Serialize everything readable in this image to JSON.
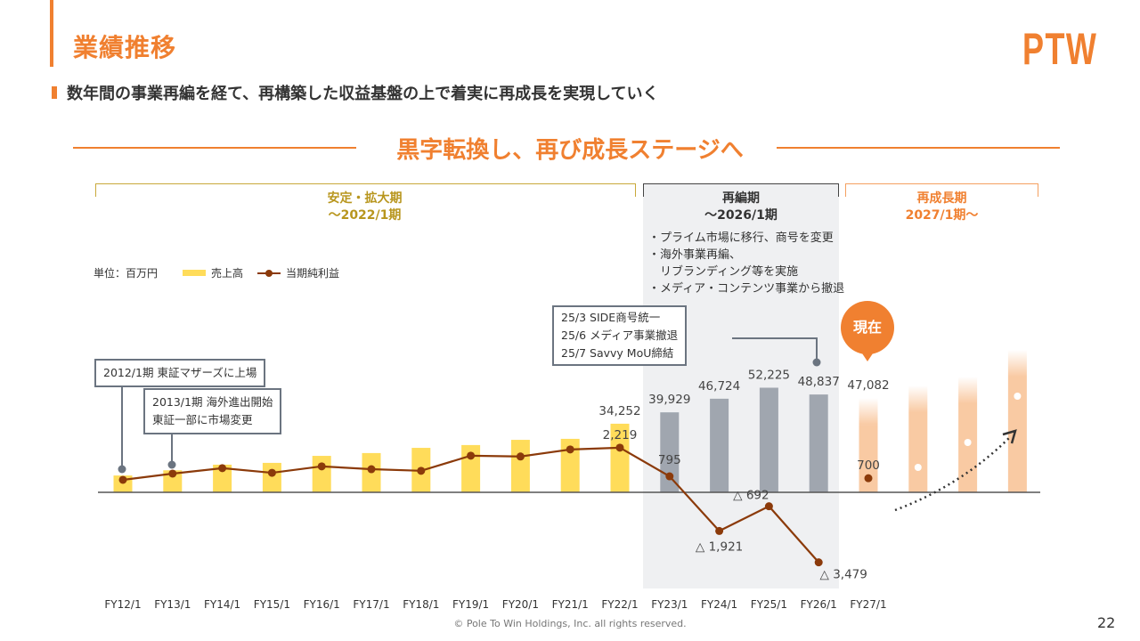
{
  "header": {
    "title": "業績推移",
    "logo": "PTW",
    "subtitle": "数年間の事業再編を経て、再構築した収益基盤の上で着実に再成長を実現していく",
    "headline": "黒字転換し、再び成長ステージへ"
  },
  "phases": [
    {
      "name": "安定・拡大期",
      "period": "～2022/1期",
      "color": "#b8961e"
    },
    {
      "name": "再編期",
      "period": "～2026/1期",
      "color": "#444444",
      "bullets": [
        "・プライム市場に移行、商号を変更",
        "・海外事業再編、",
        "　リブランディング等を実施",
        "・メディア・コンテンツ事業から撤退"
      ]
    },
    {
      "name": "再成長期",
      "period": "2027/1期～",
      "color": "#f08030"
    }
  ],
  "legend": {
    "unit": "単位：百万円",
    "sales": "売上高",
    "profit": "当期純利益"
  },
  "annotations": {
    "listing_2012": "2012/1期 東証マザーズに上場",
    "overseas_2013_line1": "2013/1期 海外進出開始",
    "overseas_2013_line2": "東証一部に市場変更",
    "events_2025": [
      "25/3 SIDE商号統一",
      "25/6 メディア事業撤退",
      "25/7 Savvy MoU締結"
    ]
  },
  "now_badge": "現在",
  "colors": {
    "accent": "#f08030",
    "sales_bar": "#ffdc5a",
    "restructure_bar": "#a0a6af",
    "forecast_bar": "#f9caa3",
    "profit_line": "#8b3a0a"
  },
  "chart_data": {
    "type": "bar",
    "title": "業績推移",
    "unit": "百万円",
    "categories": [
      "FY12/1",
      "FY13/1",
      "FY14/1",
      "FY15/1",
      "FY16/1",
      "FY17/1",
      "FY18/1",
      "FY19/1",
      "FY20/1",
      "FY21/1",
      "FY22/1",
      "FY23/1",
      "FY24/1",
      "FY25/1",
      "FY26/1",
      "FY27/1"
    ],
    "series": [
      {
        "name": "売上高",
        "kind": "bar",
        "values": [
          8400,
          11000,
          13800,
          14700,
          18200,
          19600,
          22200,
          23600,
          26200,
          26700,
          34252,
          39929,
          46724,
          52225,
          48837,
          47082
        ],
        "labels": {
          "10": "34,252",
          "11": "39,929",
          "12": "46,724",
          "13": "52,225",
          "14": "48,837",
          "15": "47,082"
        }
      },
      {
        "name": "当期純利益",
        "kind": "line",
        "values": [
          620,
          930,
          1200,
          970,
          1290,
          1150,
          1070,
          1820,
          1780,
          2130,
          2219,
          795,
          -1921,
          -692,
          -3479,
          700
        ],
        "labels": {
          "10": "2,219",
          "11": "795",
          "12": "△ 1,921",
          "13": "△ 692",
          "14": "△ 3,479",
          "15": "700"
        }
      }
    ],
    "future_periods": 3,
    "legend": "top-left"
  },
  "footer": {
    "copyright": "© Pole To Win Holdings, Inc. all rights reserved.",
    "page": "22"
  }
}
